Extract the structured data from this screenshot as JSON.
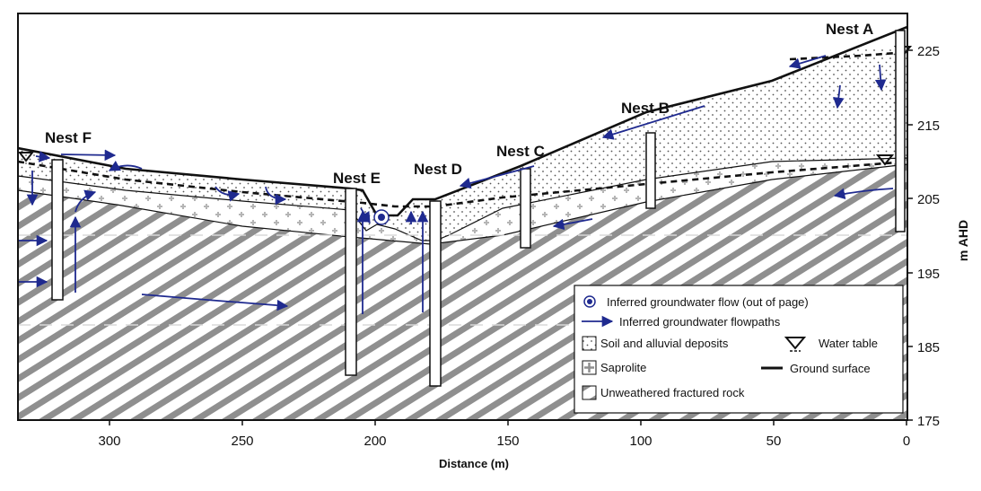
{
  "figure": {
    "x_axis": {
      "label": "Distance (m)",
      "ticks": [
        "300",
        "250",
        "200",
        "150",
        "100",
        "50",
        "0"
      ]
    },
    "y_axis": {
      "label": "m AHD",
      "ticks": [
        "225",
        "215",
        "205",
        "195",
        "185",
        "175"
      ]
    },
    "nests": [
      {
        "name": "Nest A"
      },
      {
        "name": "Nest B"
      },
      {
        "name": "Nest C"
      },
      {
        "name": "Nest D"
      },
      {
        "name": "Nest E"
      },
      {
        "name": "Nest F"
      }
    ],
    "legend": {
      "items": [
        {
          "label": "Inferred groundwater flow (out of page)"
        },
        {
          "label": "Inferred groundwater flowpaths"
        },
        {
          "label": "Soil and alluvial deposits"
        },
        {
          "label": "Water table"
        },
        {
          "label": "Saprolite"
        },
        {
          "label": "Ground surface"
        },
        {
          "label": "Unweathered fractured rock"
        }
      ]
    },
    "colors": {
      "flow_arrow": "#1f2a8f",
      "rock_stripe": "#8f8f8f",
      "saprolite_cross": "#b5b5b5"
    }
  }
}
